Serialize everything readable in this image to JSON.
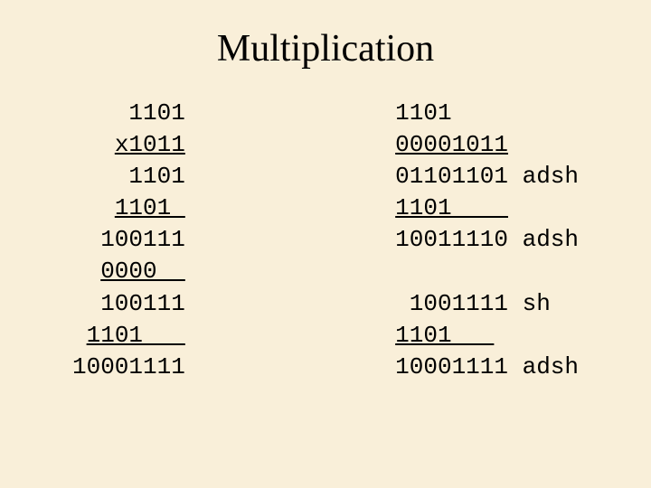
{
  "title": "Multiplication",
  "font": {
    "title_family": "Times New Roman",
    "title_size_pt": 42,
    "body_family": "Courier New",
    "body_size_pt": 26
  },
  "colors": {
    "background": "#f9efd9",
    "text": "#000000"
  },
  "left_lines": [
    {
      "text": "1101",
      "underline": false
    },
    {
      "text": "x1011",
      "underline": true
    },
    {
      "text": "1101",
      "underline": false
    },
    {
      "text": "1101 ",
      "underline": true
    },
    {
      "text": "100111",
      "underline": false
    },
    {
      "text": "0000  ",
      "underline": true
    },
    {
      "text": "100111",
      "underline": false
    },
    {
      "text": "1101   ",
      "underline": true
    },
    {
      "text": "10001111",
      "underline": false
    }
  ],
  "right_lines": [
    {
      "text": "1101",
      "underline": false,
      "note": ""
    },
    {
      "text": "00001011",
      "underline": true,
      "note": ""
    },
    {
      "text": "01101101",
      "underline": false,
      "note": " adsh"
    },
    {
      "text": "1101    ",
      "underline": true,
      "note": ""
    },
    {
      "text": "10011110",
      "underline": false,
      "note": " adsh"
    },
    {
      "text": "",
      "underline": false,
      "note": ""
    },
    {
      "text": " 1001111",
      "underline": false,
      "note": " sh"
    },
    {
      "text": "1101   ",
      "underline": true,
      "note": ""
    },
    {
      "text": "10001111",
      "underline": false,
      "note": " adsh"
    }
  ]
}
